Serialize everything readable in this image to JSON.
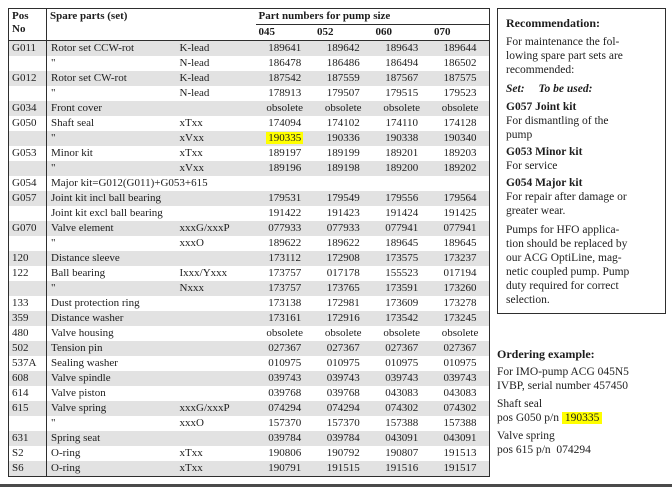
{
  "colors": {
    "row_shade": "#e2e2e2",
    "highlight": "#ffff00",
    "border": "#2e2e2e"
  },
  "table": {
    "header": {
      "pos": "Pos\nNo",
      "spare_parts": "Spare parts (set)",
      "part_numbers_title": "Part numbers for pump size",
      "sizes": [
        "045",
        "052",
        "060",
        "070"
      ]
    },
    "rows": [
      {
        "pos": "G011",
        "name": "Rotor set CCW-rot",
        "variant": "K-lead",
        "values": [
          "189641",
          "189642",
          "189643",
          "189644"
        ]
      },
      {
        "pos": "",
        "name": "\"",
        "variant": "N-lead",
        "values": [
          "186478",
          "186486",
          "186494",
          "186502"
        ]
      },
      {
        "pos": "G012",
        "name": "Rotor set CW-rot",
        "variant": "K-lead",
        "values": [
          "187542",
          "187559",
          "187567",
          "187575"
        ]
      },
      {
        "pos": "",
        "name": "\"",
        "variant": "N-lead",
        "values": [
          "178913",
          "179507",
          "179515",
          "179523"
        ]
      },
      {
        "pos": "G034",
        "name": "Front cover",
        "variant": "",
        "values": [
          "obsolete",
          "obsolete",
          "obsolete",
          "obsolete"
        ]
      },
      {
        "pos": "G050",
        "name": "Shaft seal",
        "variant": "xTxx",
        "values": [
          "174094",
          "174102",
          "174110",
          "174128"
        ]
      },
      {
        "pos": "",
        "name": "\"",
        "variant": "xVxx",
        "values": [
          "190335",
          "190336",
          "190338",
          "190340"
        ],
        "highlight": 0
      },
      {
        "pos": "G053",
        "name": "Minor kit",
        "variant": "xTxx",
        "values": [
          "189197",
          "189199",
          "189201",
          "189203"
        ]
      },
      {
        "pos": "",
        "name": "\"",
        "variant": "xVxx",
        "values": [
          "189196",
          "189198",
          "189200",
          "189202"
        ]
      },
      {
        "pos": "G054",
        "name": "Major kit=G012(G011)+G053+615",
        "variant": "",
        "values": [
          "",
          "",
          "",
          ""
        ]
      },
      {
        "pos": "G057",
        "name": "Joint kit incl ball bearing",
        "variant": "",
        "values": [
          "179531",
          "179549",
          "179556",
          "179564"
        ]
      },
      {
        "pos": "",
        "name": "Joint kit excl ball bearing",
        "variant": "",
        "values": [
          "191422",
          "191423",
          "191424",
          "191425"
        ]
      },
      {
        "pos": "G070",
        "name": "Valve element",
        "variant": "xxxG/xxxP",
        "values": [
          "077933",
          "077933",
          "077941",
          "077941"
        ]
      },
      {
        "pos": "",
        "name": "\"",
        "variant": "xxxO",
        "values": [
          "189622",
          "189622",
          "189645",
          "189645"
        ]
      },
      {
        "pos": "120",
        "name": "Distance sleeve",
        "variant": "",
        "values": [
          "173112",
          "172908",
          "173575",
          "173237"
        ]
      },
      {
        "pos": "122",
        "name": "Ball bearing",
        "variant": "Ixxx/Yxxx",
        "values": [
          "173757",
          "017178",
          "155523",
          "017194"
        ]
      },
      {
        "pos": "",
        "name": "\"",
        "variant": "Nxxx",
        "values": [
          "173757",
          "173765",
          "173591",
          "173260"
        ]
      },
      {
        "pos": "133",
        "name": "Dust protection ring",
        "variant": "",
        "values": [
          "173138",
          "172981",
          "173609",
          "173278"
        ]
      },
      {
        "pos": "359",
        "name": "Distance washer",
        "variant": "",
        "values": [
          "173161",
          "172916",
          "173542",
          "173245"
        ]
      },
      {
        "pos": "480",
        "name": "Valve housing",
        "variant": "",
        "values": [
          "obsolete",
          "obsolete",
          "obsolete",
          "obsolete"
        ]
      },
      {
        "pos": "502",
        "name": "Tension pin",
        "variant": "",
        "values": [
          "027367",
          "027367",
          "027367",
          "027367"
        ]
      },
      {
        "pos": "537A",
        "name": "Sealing washer",
        "variant": "",
        "values": [
          "010975",
          "010975",
          "010975",
          "010975"
        ]
      },
      {
        "pos": "608",
        "name": "Valve spindle",
        "variant": "",
        "values": [
          "039743",
          "039743",
          "039743",
          "039743"
        ]
      },
      {
        "pos": "614",
        "name": "Valve piston",
        "variant": "",
        "values": [
          "039768",
          "039768",
          "043083",
          "043083"
        ]
      },
      {
        "pos": "615",
        "name": "Valve spring",
        "variant": "xxxG/xxxP",
        "values": [
          "074294",
          "074294",
          "074302",
          "074302"
        ]
      },
      {
        "pos": "",
        "name": "\"",
        "variant": "xxxO",
        "values": [
          "157370",
          "157370",
          "157388",
          "157388"
        ]
      },
      {
        "pos": "631",
        "name": "Spring seat",
        "variant": "",
        "values": [
          "039784",
          "039784",
          "043091",
          "043091"
        ]
      },
      {
        "pos": "S2",
        "name": "O-ring",
        "variant": "xTxx",
        "values": [
          "190806",
          "190792",
          "190807",
          "191513"
        ]
      },
      {
        "pos": "S6",
        "name": "O-ring",
        "variant": "xTxx",
        "values": [
          "190791",
          "191515",
          "191516",
          "191517"
        ]
      }
    ]
  },
  "recommendation": {
    "title": "Recommendation:",
    "intro": "For maintenance the fol-\nlowing spare part sets are\nrecommended:",
    "set_label": "Set:",
    "set_value": "To be used:",
    "kits": [
      {
        "name": "G057 Joint kit",
        "desc": "For dismantling of the\npump"
      },
      {
        "name": "G053 Minor kit",
        "desc": "For service"
      },
      {
        "name": "G054 Major kit",
        "desc": "For repair after damage or\ngreater wear."
      }
    ],
    "note": "Pumps for HFO applica-\ntion should be replaced by\nour ACG OptiLine, mag-\nnetic coupled pump. Pump\nduty required for correct\nselection."
  },
  "ordering": {
    "title": "Ordering example:",
    "intro": "For IMO-pump ACG 045N5\nIVBP, serial number 457450",
    "items": [
      {
        "label": "Shaft seal",
        "line": "pos G050 p/n",
        "pn": "190335",
        "highlight": true
      },
      {
        "label": "Valve spring",
        "line": "pos 615 p/n",
        "pn": "074294",
        "highlight": false
      }
    ]
  }
}
